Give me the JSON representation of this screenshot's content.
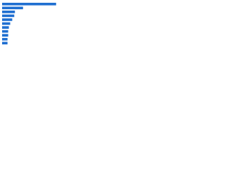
{
  "chart_data": {
    "type": "bar",
    "orientation": "horizontal",
    "categories": [
      null,
      null,
      null,
      null,
      null,
      null,
      null,
      null,
      null,
      null,
      null
    ],
    "values": [
      80,
      31,
      19,
      18,
      15,
      12,
      10,
      9,
      9,
      8,
      8
    ],
    "color": "#1f6fd1",
    "xlim": [
      0,
      100
    ]
  }
}
